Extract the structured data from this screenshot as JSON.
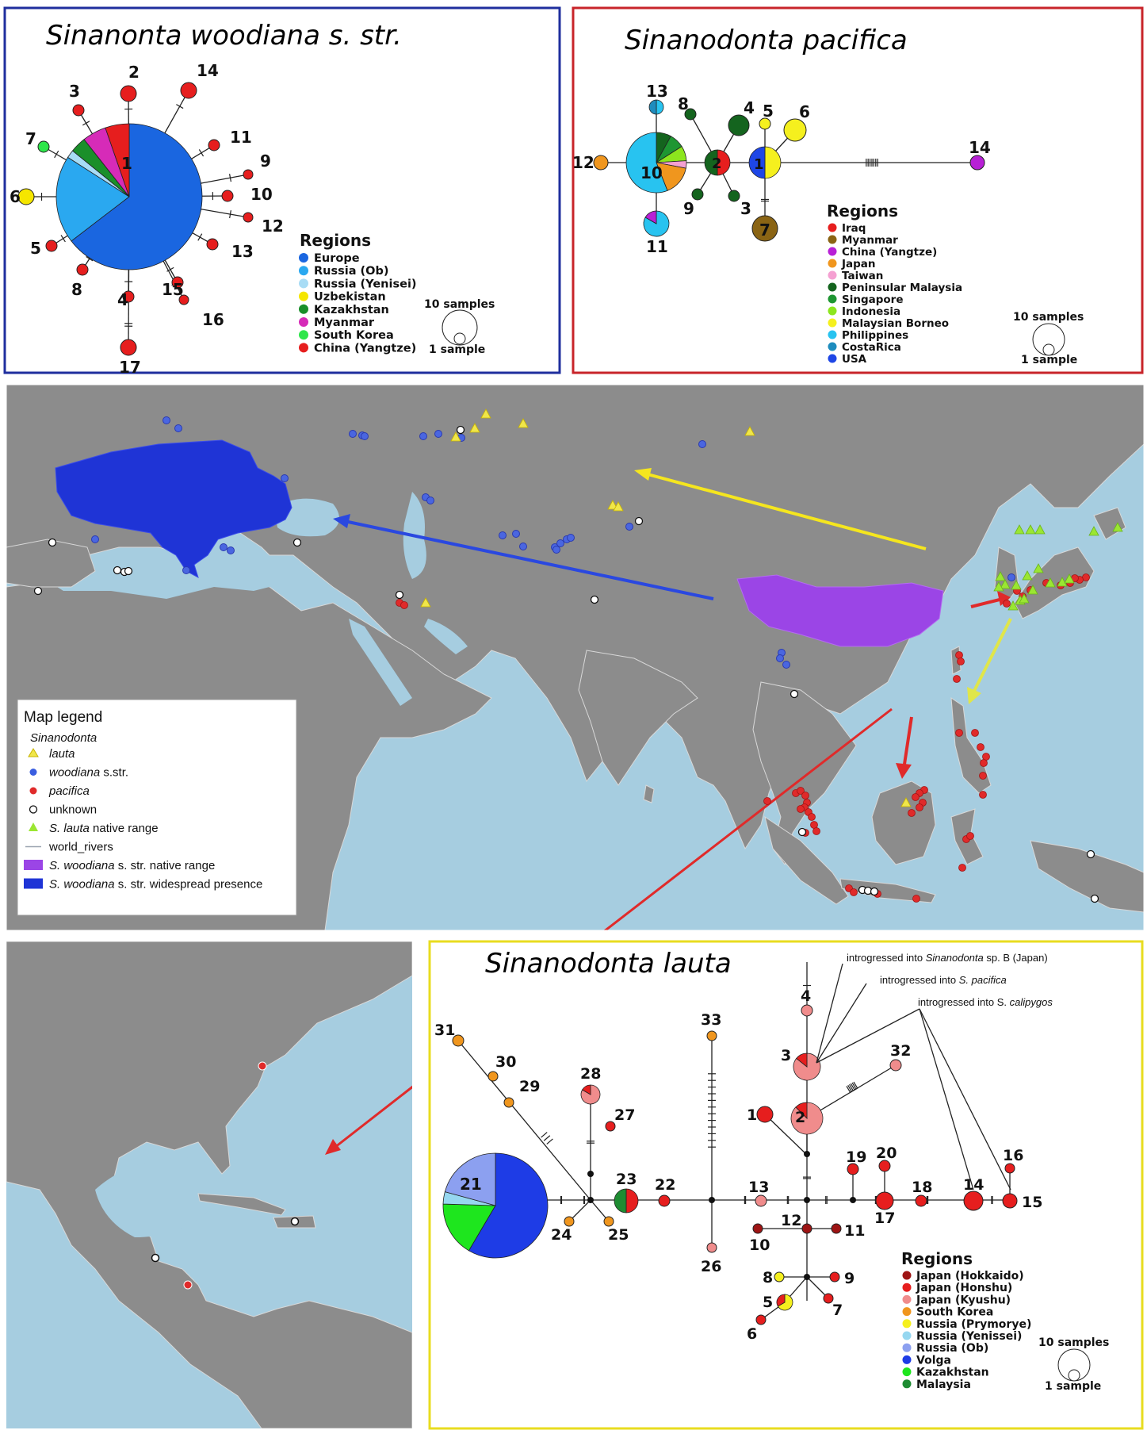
{
  "panels": {
    "woodiana": {
      "title": "Sinanonta woodiana s. str.",
      "frame_color": "#1f2f9e",
      "center_haplotype": "1",
      "haplotypes": [
        "2",
        "3",
        "4",
        "5",
        "6",
        "7",
        "8",
        "9",
        "10",
        "11",
        "12",
        "13",
        "14",
        "15",
        "16",
        "17"
      ],
      "regions_title": "Regions",
      "regions": [
        {
          "name": "Europe",
          "color": "#1a66e0"
        },
        {
          "name": "Russia (Ob)",
          "color": "#2aa8f0"
        },
        {
          "name": "Russia (Yenisei)",
          "color": "#a8dcf5"
        },
        {
          "name": "Uzbekistan",
          "color": "#f5e600"
        },
        {
          "name": "Kazakhstan",
          "color": "#1a8f2a"
        },
        {
          "name": "Myanmar",
          "color": "#d62bb8"
        },
        {
          "name": "South Korea",
          "color": "#2ee64a"
        },
        {
          "name": "China (Yangtze)",
          "color": "#e61e1e"
        }
      ],
      "scale_large": "10 samples",
      "scale_small": "1 sample"
    },
    "pacifica": {
      "title": "Sinanodonta pacifica",
      "frame_color": "#c8242a",
      "haplotypes": [
        "1",
        "2",
        "3",
        "4",
        "5",
        "6",
        "7",
        "8",
        "9",
        "10",
        "11",
        "12",
        "13",
        "14"
      ],
      "regions_title": "Regions",
      "regions": [
        {
          "name": "Iraq",
          "color": "#e61e1e"
        },
        {
          "name": "Myanmar",
          "color": "#8a6414"
        },
        {
          "name": "China (Yangtze)",
          "color": "#b820d6"
        },
        {
          "name": "Japan",
          "color": "#f0961e"
        },
        {
          "name": "Taiwan",
          "color": "#f5a0d2"
        },
        {
          "name": "Peninsular Malaysia",
          "color": "#14641e"
        },
        {
          "name": "Singapore",
          "color": "#1e9632"
        },
        {
          "name": "Indonesia",
          "color": "#8ce61e"
        },
        {
          "name": "Malaysian Borneo",
          "color": "#f5f01e"
        },
        {
          "name": "Philippines",
          "color": "#28c3f0"
        },
        {
          "name": "CostaRica",
          "color": "#1e8cbe"
        },
        {
          "name": "USA",
          "color": "#1e46e6"
        }
      ],
      "scale_large": "10 samples",
      "scale_small": "1 sample"
    },
    "lauta": {
      "title": "Sinanodonta lauta",
      "frame_color": "#e8dc20",
      "haplotypes": [
        "1",
        "2",
        "3",
        "4",
        "5",
        "6",
        "7",
        "8",
        "9",
        "10",
        "11",
        "12",
        "13",
        "14",
        "15",
        "16",
        "17",
        "18",
        "19",
        "20",
        "21",
        "22",
        "23",
        "24",
        "25",
        "26",
        "27",
        "28",
        "29",
        "30",
        "31",
        "32",
        "33"
      ],
      "notes": [
        {
          "prefix": "introgressed into ",
          "italic": "Sinanodonta",
          "suffix": " sp. B (Japan)"
        },
        {
          "prefix": "introgressed into ",
          "italic": "S. pacifica",
          "suffix": ""
        },
        {
          "prefix": "introgressed into S. ",
          "italic": "calipygos",
          "suffix": ""
        }
      ],
      "regions_title": "Regions",
      "regions": [
        {
          "name": "Japan (Hokkaido)",
          "color": "#9e1414"
        },
        {
          "name": "Japan (Honshu)",
          "color": "#e61e1e"
        },
        {
          "name": "Japan (Kyushu)",
          "color": "#f08c8c"
        },
        {
          "name": "South Korea",
          "color": "#f0961e"
        },
        {
          "name": "Russia (Prymorye)",
          "color": "#f5f01e"
        },
        {
          "name": "Russia (Yenissei)",
          "color": "#96d7f0"
        },
        {
          "name": "Russia (Ob)",
          "color": "#8ca0f0"
        },
        {
          "name": "Volga",
          "color": "#1e3ce6"
        },
        {
          "name": "Kazakhstan",
          "color": "#1ee61e"
        },
        {
          "name": "Malaysia",
          "color": "#1e8c32"
        }
      ],
      "scale_large": "10 samples",
      "scale_small": "1 sample"
    }
  },
  "map_legend": {
    "title": "Map legend",
    "genus": "Sinanodonta",
    "items": [
      {
        "label": "lauta",
        "italic": true,
        "marker": "triangle-outline",
        "color": "#f0e64a"
      },
      {
        "label": "woodiana s.str.",
        "italic_part": "woodiana",
        "rest": " s.str.",
        "marker": "dot",
        "color": "#3a5ee0"
      },
      {
        "label": "pacifica",
        "italic": true,
        "marker": "dot",
        "color": "#e02a2a"
      },
      {
        "label": "unknown",
        "italic": false,
        "marker": "circle-open",
        "color": "#ffffff"
      },
      {
        "label": "S. lauta native range",
        "italic_part": "S. lauta",
        "rest": " native range",
        "marker": "triangle",
        "color": "#9be632"
      },
      {
        "label": "world_rivers",
        "italic": false,
        "marker": "line",
        "color": "#9aa3b0"
      },
      {
        "label": "S. woodiana s. str. native range",
        "italic_part": "S. woodiana",
        "rest": " s. str. native range",
        "marker": "rect",
        "color": "#9b45e6"
      },
      {
        "label": "S. woodiana s. str. widespread presence",
        "italic_part": "S. woodiana",
        "rest": " s. str. widespread presence",
        "marker": "rect",
        "color": "#1f34d6"
      }
    ]
  },
  "colors": {
    "ocean": "#a6cde0",
    "land": "#8c8c8c",
    "border": "#d8d8d8",
    "europe_range": "#1f34d6",
    "china_range": "#9b45e6"
  }
}
